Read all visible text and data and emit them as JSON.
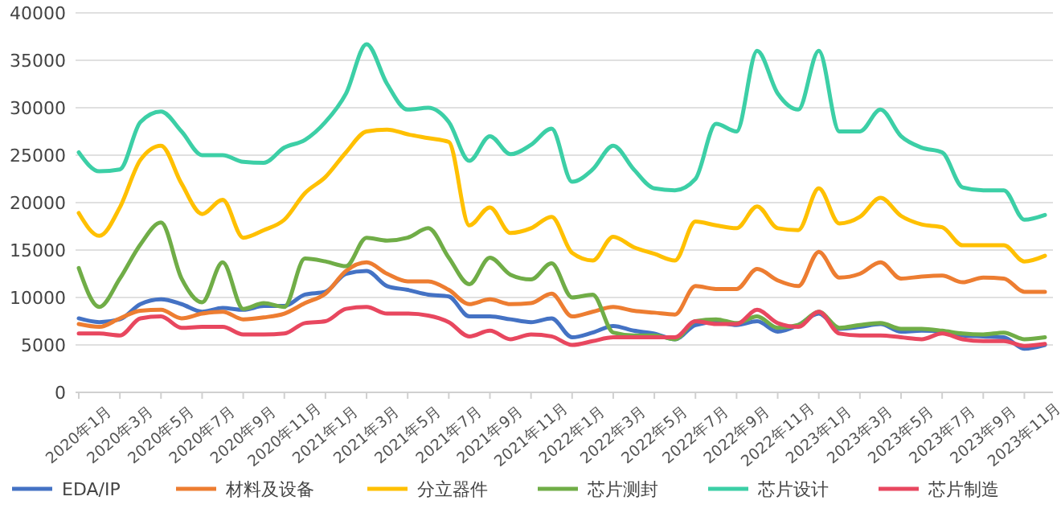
{
  "chart_data": {
    "type": "line",
    "categories": [
      "2020年1月",
      null,
      "2020年3月",
      null,
      "2020年5月",
      null,
      "2020年7月",
      null,
      "2020年9月",
      null,
      "2020年11月",
      null,
      "2021年1月",
      null,
      "2021年3月",
      null,
      "2021年5月",
      null,
      "2021年7月",
      null,
      "2021年9月",
      null,
      "2021年11月",
      null,
      "2022年1月",
      null,
      "2022年3月",
      null,
      "2022年5月",
      null,
      "2022年7月",
      null,
      "2022年9月",
      null,
      "2022年11月",
      null,
      "2023年1月",
      null,
      "2023年3月",
      null,
      "2023年5月",
      null,
      "2023年7月",
      null,
      "2023年9月",
      null,
      "2023年11月",
      null
    ],
    "series": [
      {
        "name": "EDA/IP",
        "color": "#4472c4",
        "values": [
          7800,
          7400,
          7700,
          9300,
          9800,
          9300,
          8500,
          8900,
          8700,
          9100,
          9100,
          10300,
          10600,
          12500,
          12800,
          11200,
          10800,
          10300,
          10100,
          8000,
          8000,
          7700,
          7400,
          7800,
          5800,
          6300,
          7000,
          6500,
          6200,
          5600,
          7100,
          7400,
          7100,
          7500,
          6400,
          7100,
          8300,
          6700,
          6900,
          7200,
          6400,
          6500,
          6400,
          6000,
          5900,
          5800,
          4600,
          5000
        ]
      },
      {
        "name": "材料及设备",
        "color": "#ed7d31",
        "values": [
          7200,
          6900,
          7800,
          8600,
          8700,
          7800,
          8300,
          8500,
          7700,
          7900,
          8300,
          9400,
          10400,
          12800,
          13700,
          12500,
          11700,
          11700,
          10800,
          9300,
          9800,
          9300,
          9400,
          10400,
          8000,
          8500,
          9000,
          8600,
          8400,
          8200,
          11200,
          10900,
          10900,
          13000,
          11800,
          11200,
          14800,
          12100,
          12500,
          13700,
          12000,
          12200,
          12300,
          11600,
          12100,
          12000,
          10600,
          10600
        ]
      },
      {
        "name": "分立器件",
        "color": "#ffc000",
        "values": [
          18900,
          16500,
          19500,
          24500,
          26000,
          22000,
          18800,
          20300,
          16300,
          17100,
          18200,
          21000,
          22700,
          25300,
          27500,
          27700,
          27200,
          26800,
          26400,
          17600,
          19500,
          16800,
          17300,
          18500,
          14700,
          13900,
          16400,
          15300,
          14600,
          13900,
          18000,
          17600,
          17300,
          19600,
          17300,
          17100,
          21500,
          17800,
          18500,
          20500,
          18600,
          17700,
          17400,
          15500,
          15500,
          15500,
          13800,
          14400
        ]
      },
      {
        "name": "芯片测封",
        "color": "#70ad47",
        "values": [
          13100,
          9000,
          12000,
          15600,
          17900,
          12000,
          9500,
          13700,
          8800,
          9400,
          9000,
          14100,
          13800,
          13300,
          16300,
          16000,
          16300,
          17300,
          14200,
          11400,
          14200,
          12400,
          11900,
          13600,
          10000,
          10300,
          6300,
          6000,
          6000,
          5600,
          7500,
          7700,
          7300,
          8000,
          6800,
          7100,
          8500,
          6800,
          7100,
          7300,
          6700,
          6700,
          6500,
          6200,
          6100,
          6300,
          5600,
          5800
        ]
      },
      {
        "name": "芯片设计",
        "color": "#3ccfa6",
        "values": [
          25300,
          23300,
          23500,
          28500,
          29600,
          27500,
          25000,
          25000,
          24300,
          24200,
          25800,
          26600,
          28500,
          31500,
          36700,
          32500,
          29800,
          30000,
          28500,
          24400,
          27000,
          25100,
          26100,
          27800,
          22200,
          23500,
          26000,
          23500,
          21500,
          21300,
          22500,
          28300,
          27500,
          36000,
          31500,
          29800,
          36000,
          27500,
          27500,
          29800,
          27000,
          25800,
          25300,
          21600,
          21300,
          21300,
          18200,
          18700
        ]
      },
      {
        "name": "芯片制造",
        "color": "#e8475f",
        "values": [
          6200,
          6200,
          6000,
          7800,
          8000,
          6800,
          6900,
          6900,
          6100,
          6100,
          6200,
          7300,
          7500,
          8800,
          9000,
          8300,
          8300,
          8100,
          7400,
          5900,
          6500,
          5600,
          6100,
          5900,
          5000,
          5400,
          5800,
          5800,
          5800,
          5800,
          7500,
          7200,
          7200,
          8700,
          7300,
          6900,
          8500,
          6200,
          6000,
          6000,
          5800,
          5600,
          6200,
          5600,
          5400,
          5400,
          4900,
          5100
        ]
      }
    ],
    "ylim": [
      0,
      40000
    ],
    "yticks": [
      0,
      5000,
      10000,
      15000,
      20000,
      25000,
      30000,
      35000,
      40000
    ],
    "grid": "y",
    "legend": "bottom",
    "marker": "none",
    "line_style": "solid"
  }
}
